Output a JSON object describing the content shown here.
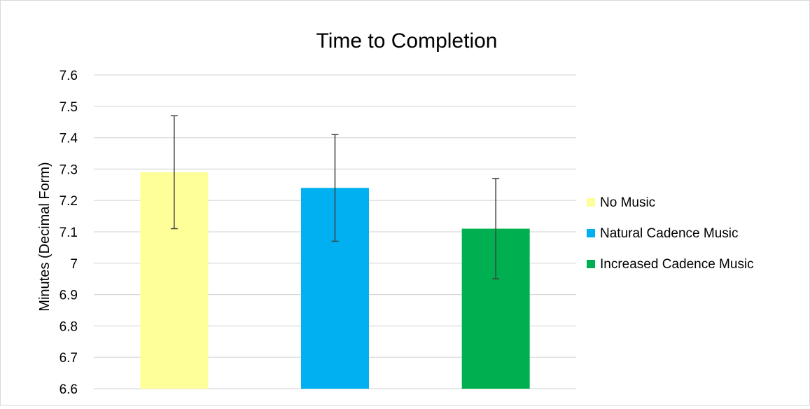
{
  "chart_data": {
    "type": "bar",
    "title": "Time to Completion",
    "ylabel": "Minutes  (Decimal Form)",
    "xlabel": "",
    "ylim": [
      6.6,
      7.6
    ],
    "ytick_step": 0.1,
    "yticks": [
      "7.6",
      "7.5",
      "7.4",
      "7.3",
      "7.2",
      "7.1",
      "7",
      "6.9",
      "6.8",
      "6.7",
      "6.6"
    ],
    "grid": true,
    "legend_position": "right",
    "series": [
      {
        "name": "No Music",
        "value": 7.29,
        "error_low": 7.11,
        "error_high": 7.47,
        "color": "#FFFF99"
      },
      {
        "name": "Natural Cadence Music",
        "value": 7.24,
        "error_low": 7.07,
        "error_high": 7.41,
        "color": "#00B0F0"
      },
      {
        "name": "Increased Cadence Music",
        "value": 7.11,
        "error_low": 6.95,
        "error_high": 7.27,
        "color": "#00B050"
      }
    ],
    "colors": {
      "grid": "#D9D9D9",
      "axis_text": "#000000",
      "error_bar": "#404040",
      "frame": "#D9D9D9"
    }
  }
}
